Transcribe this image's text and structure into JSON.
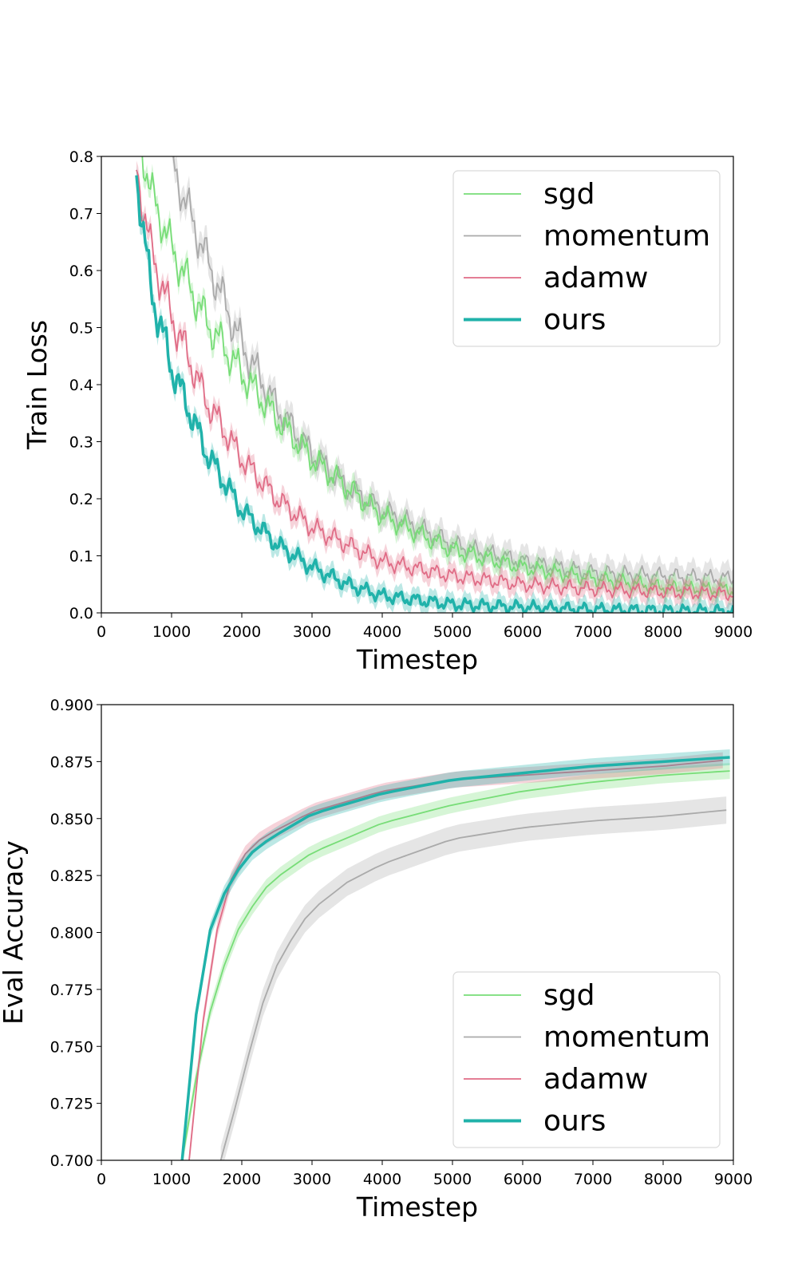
{
  "chart_data": [
    {
      "type": "line",
      "xlabel": "Timestep",
      "ylabel": "Train Loss",
      "xlim": [
        0,
        9000
      ],
      "ylim": [
        0.0,
        0.8
      ],
      "xticks": [
        "0",
        "1000",
        "2000",
        "3000",
        "4000",
        "5000",
        "6000",
        "7000",
        "8000",
        "9000"
      ],
      "yticks": [
        "0.0",
        "0.1",
        "0.2",
        "0.3",
        "0.4",
        "0.5",
        "0.6",
        "0.7",
        "0.8"
      ],
      "legend_position": "upper right",
      "shaded_bands": true,
      "series": [
        {
          "name": "sgd",
          "color": "#77dd77",
          "x": [
            500,
            700,
            1000,
            1500,
            2000,
            2500,
            3000,
            3500,
            4000,
            5000,
            6000,
            7000,
            8000,
            9000
          ],
          "y": [
            0.86,
            0.74,
            0.64,
            0.51,
            0.42,
            0.34,
            0.27,
            0.22,
            0.17,
            0.11,
            0.08,
            0.06,
            0.045,
            0.04
          ]
        },
        {
          "name": "momentum",
          "color": "#aaaaaa",
          "x": [
            1000,
            1200,
            1500,
            2000,
            2500,
            3000,
            3500,
            4000,
            5000,
            6000,
            7000,
            8000,
            9000
          ],
          "y": [
            0.79,
            0.72,
            0.62,
            0.47,
            0.36,
            0.28,
            0.22,
            0.18,
            0.12,
            0.09,
            0.07,
            0.065,
            0.06
          ]
        },
        {
          "name": "adamw",
          "color": "#e06c86",
          "x": [
            500,
            700,
            1000,
            1500,
            2000,
            2500,
            3000,
            3500,
            4000,
            5000,
            6000,
            7000,
            8000,
            9000
          ],
          "y": [
            0.78,
            0.64,
            0.52,
            0.37,
            0.27,
            0.2,
            0.15,
            0.12,
            0.09,
            0.065,
            0.05,
            0.042,
            0.037,
            0.033
          ]
        },
        {
          "name": "ours",
          "color": "#20b2aa",
          "x": [
            500,
            700,
            1000,
            1500,
            2000,
            2500,
            3000,
            3500,
            4000,
            5000,
            6000,
            7000,
            8000,
            9000
          ],
          "y": [
            0.77,
            0.57,
            0.43,
            0.28,
            0.18,
            0.12,
            0.08,
            0.05,
            0.03,
            0.015,
            0.01,
            0.006,
            0.004,
            0.003
          ]
        }
      ]
    },
    {
      "type": "line",
      "xlabel": "Timestep",
      "ylabel": "Eval Accuracy",
      "xlim": [
        0,
        9000
      ],
      "ylim": [
        0.7,
        0.9
      ],
      "xticks": [
        "0",
        "1000",
        "2000",
        "3000",
        "4000",
        "5000",
        "6000",
        "7000",
        "8000",
        "9000"
      ],
      "yticks": [
        "0.700",
        "0.725",
        "0.750",
        "0.775",
        "0.800",
        "0.825",
        "0.850",
        "0.875",
        "0.900"
      ],
      "legend_position": "lower right",
      "shaded_bands": true,
      "series": [
        {
          "name": "sgd",
          "color": "#77dd77",
          "x": [
            1150,
            1200,
            1400,
            1600,
            1800,
            2000,
            2400,
            3000,
            4000,
            5000,
            6000,
            7000,
            8000,
            9000
          ],
          "y": [
            0.7,
            0.71,
            0.745,
            0.772,
            0.79,
            0.805,
            0.822,
            0.835,
            0.848,
            0.856,
            0.862,
            0.866,
            0.869,
            0.871
          ]
        },
        {
          "name": "momentum",
          "color": "#aaaaaa",
          "x": [
            1700,
            1800,
            2000,
            2200,
            2400,
            2800,
            3000,
            3500,
            4000,
            5000,
            6000,
            7000,
            8000,
            9000
          ],
          "y": [
            0.7,
            0.71,
            0.735,
            0.758,
            0.78,
            0.802,
            0.81,
            0.822,
            0.83,
            0.841,
            0.846,
            0.849,
            0.851,
            0.854
          ]
        },
        {
          "name": "adamw",
          "color": "#e06c86",
          "x": [
            1250,
            1400,
            1600,
            1800,
            2000,
            2300,
            2500,
            3000,
            4000,
            5000,
            6000,
            7000,
            8000,
            9000
          ],
          "y": [
            0.7,
            0.75,
            0.795,
            0.82,
            0.833,
            0.842,
            0.845,
            0.853,
            0.862,
            0.867,
            0.869,
            0.871,
            0.873,
            0.876
          ]
        },
        {
          "name": "ours",
          "color": "#20b2aa",
          "x": [
            1150,
            1400,
            1600,
            1800,
            2000,
            2200,
            2500,
            3000,
            4000,
            5000,
            6000,
            7000,
            8000,
            9000
          ],
          "y": [
            0.7,
            0.78,
            0.808,
            0.82,
            0.83,
            0.837,
            0.843,
            0.852,
            0.861,
            0.867,
            0.87,
            0.873,
            0.875,
            0.877
          ]
        }
      ]
    }
  ]
}
